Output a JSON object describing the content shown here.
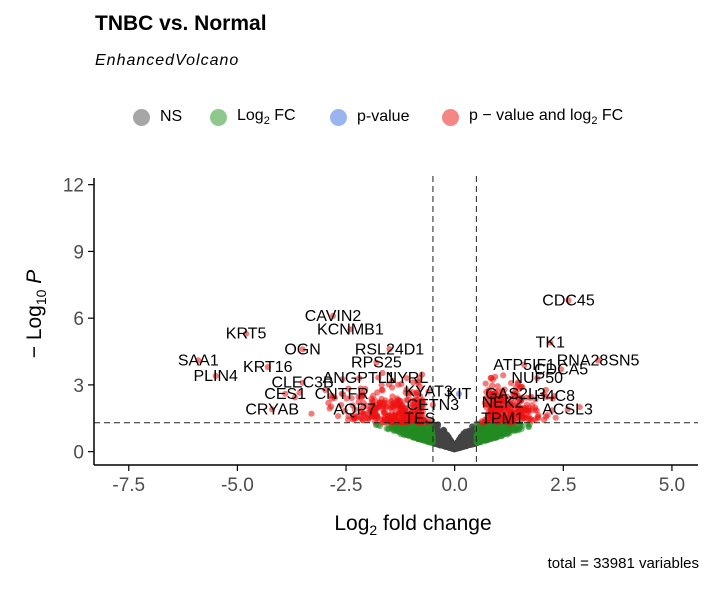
{
  "chart_data": {
    "type": "scatter",
    "title": "TNBC vs. Normal",
    "subtitle": "EnhancedVolcano",
    "caption": "total = 33981 variables",
    "xlabel_main": "Log",
    "xlabel_sub": "2",
    "xlabel_rest": " fold change",
    "ylabel_pre": "− Log",
    "ylabel_sub": "10",
    "ylabel_post": " P",
    "xlim": [
      -8.3,
      5.6
    ],
    "ylim": [
      -0.6,
      12.3
    ],
    "x_ticks": [
      -7.5,
      -5.0,
      -2.5,
      0.0,
      2.5,
      5.0
    ],
    "x_tick_labels": [
      "-7.5",
      "-5.0",
      "-2.5",
      "0.0",
      "2.5",
      "5.0"
    ],
    "y_ticks": [
      0,
      3,
      6,
      9,
      12
    ],
    "y_tick_labels": [
      "0",
      "3",
      "6",
      "9",
      "12"
    ],
    "fc_cutoff": 0.5,
    "p_cutoff": 1.3,
    "legend_position": "top",
    "legend": [
      {
        "key": "ns",
        "label": "NS",
        "sub": "",
        "rest": "",
        "color": "#a6a6a6"
      },
      {
        "key": "fc",
        "label": "Log",
        "sub": "2",
        "rest": " FC",
        "color": "#8fc88c"
      },
      {
        "key": "p",
        "label": "p-value",
        "sub": "",
        "rest": "",
        "color": "#9ab4ef"
      },
      {
        "key": "both",
        "label": "p − value and log",
        "sub": "2",
        "rest": " FC",
        "color": "#f58686"
      }
    ],
    "colors": {
      "ns": "#444444",
      "fc": "#228b22",
      "p": "#4169e1",
      "both": "#ee1111"
    },
    "labeled_points": [
      {
        "label": "CDC45",
        "x": 2.62,
        "y": 6.8
      },
      {
        "label": "TK1",
        "x": 2.2,
        "y": 4.9
      },
      {
        "label": "RNA28SN5",
        "x": 3.3,
        "y": 4.1
      },
      {
        "label": "CDCA5",
        "x": 2.45,
        "y": 3.7
      },
      {
        "label": "NUP50",
        "x": 1.9,
        "y": 3.3
      },
      {
        "label": "ATP5IF1",
        "x": 1.6,
        "y": 3.9
      },
      {
        "label": "GAS2L3",
        "x": 1.4,
        "y": 2.6
      },
      {
        "label": "NEK2",
        "x": 1.1,
        "y": 2.2
      },
      {
        "label": "H4C8",
        "x": 2.3,
        "y": 2.5
      },
      {
        "label": "ACSL3",
        "x": 2.6,
        "y": 1.9
      },
      {
        "label": "TPM1",
        "x": 1.1,
        "y": 1.5
      },
      {
        "label": "KIT",
        "x": 0.1,
        "y": 2.6
      },
      {
        "label": "KYAT3",
        "x": -0.6,
        "y": 2.7
      },
      {
        "label": "NYRL",
        "x": -1.1,
        "y": 3.3
      },
      {
        "label": "CETN3",
        "x": -0.5,
        "y": 2.1
      },
      {
        "label": "TES",
        "x": -0.8,
        "y": 1.5
      },
      {
        "label": "CAVIN2",
        "x": -2.8,
        "y": 6.1
      },
      {
        "label": "KCNMB1",
        "x": -2.4,
        "y": 5.5
      },
      {
        "label": "RSL24D1",
        "x": -1.5,
        "y": 4.6
      },
      {
        "label": "RPS25",
        "x": -1.8,
        "y": 4.0
      },
      {
        "label": "OGN",
        "x": -3.5,
        "y": 4.6
      },
      {
        "label": "KRT5",
        "x": -4.8,
        "y": 5.3
      },
      {
        "label": "KRT16",
        "x": -4.3,
        "y": 3.8
      },
      {
        "label": "ANGPTL1",
        "x": -2.2,
        "y": 3.3
      },
      {
        "label": "CLEC3B",
        "x": -3.5,
        "y": 3.1
      },
      {
        "label": "SAA1",
        "x": -5.9,
        "y": 4.1
      },
      {
        "label": "PLIN4",
        "x": -5.5,
        "y": 3.4
      },
      {
        "label": "CES1",
        "x": -3.9,
        "y": 2.6
      },
      {
        "label": "CNTFR",
        "x": -2.6,
        "y": 2.6
      },
      {
        "label": "CRYAB",
        "x": -4.2,
        "y": 1.9
      },
      {
        "label": "AQP7",
        "x": -2.3,
        "y": 1.9
      }
    ]
  }
}
